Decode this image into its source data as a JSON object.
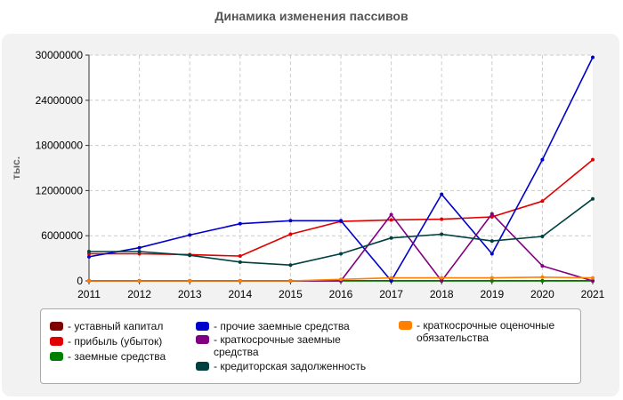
{
  "chart_data": {
    "type": "line",
    "title": "Динамика изменения пассивов",
    "ylabel": "тыс.",
    "xlabel": "",
    "x": [
      "2011",
      "2012",
      "2013",
      "2014",
      "2015",
      "2016",
      "2017",
      "2018",
      "2019",
      "2020",
      "2021"
    ],
    "ylim": [
      0,
      30000000
    ],
    "yticks": [
      "0",
      "6000000",
      "12000000",
      "18000000",
      "24000000",
      "30000000"
    ],
    "ytick_values": [
      0,
      6000000,
      12000000,
      18000000,
      24000000,
      30000000
    ],
    "grid": true,
    "legend_position": "bottom",
    "series": [
      {
        "name": "- уставный капитал",
        "color": "#800000",
        "values": [
          20000,
          20000,
          20000,
          20000,
          20000,
          20000,
          20000,
          20000,
          20000,
          20000,
          20000
        ]
      },
      {
        "name": "- прибыль (убыток)",
        "color": "#e00000",
        "values": [
          3600000,
          3600000,
          3500000,
          3300000,
          6200000,
          7900000,
          8100000,
          8200000,
          8500000,
          10600000,
          16100000
        ]
      },
      {
        "name": "- заемные средства",
        "color": "#008000",
        "values": [
          0,
          0,
          0,
          0,
          0,
          0,
          0,
          0,
          0,
          0,
          0
        ]
      },
      {
        "name": "- прочие заемные средства",
        "color": "#0000cc",
        "values": [
          3200000,
          4400000,
          6100000,
          7600000,
          8000000,
          8000000,
          0,
          11500000,
          3600000,
          16100000,
          29700000
        ]
      },
      {
        "name": "- краткосрочные заемные средства",
        "color": "#800080",
        "values": [
          0,
          0,
          0,
          0,
          0,
          0,
          8800000,
          0,
          8900000,
          2000000,
          0
        ]
      },
      {
        "name": "- кредиторская задолженность",
        "color": "#004040",
        "values": [
          3900000,
          3900000,
          3400000,
          2500000,
          2100000,
          3600000,
          5700000,
          6200000,
          5300000,
          5900000,
          10900000
        ]
      },
      {
        "name": "- краткосрочные оценочные обязательства",
        "color": "#ff8000",
        "values": [
          0,
          0,
          0,
          0,
          0,
          200000,
          400000,
          400000,
          400000,
          500000,
          400000
        ]
      }
    ]
  }
}
